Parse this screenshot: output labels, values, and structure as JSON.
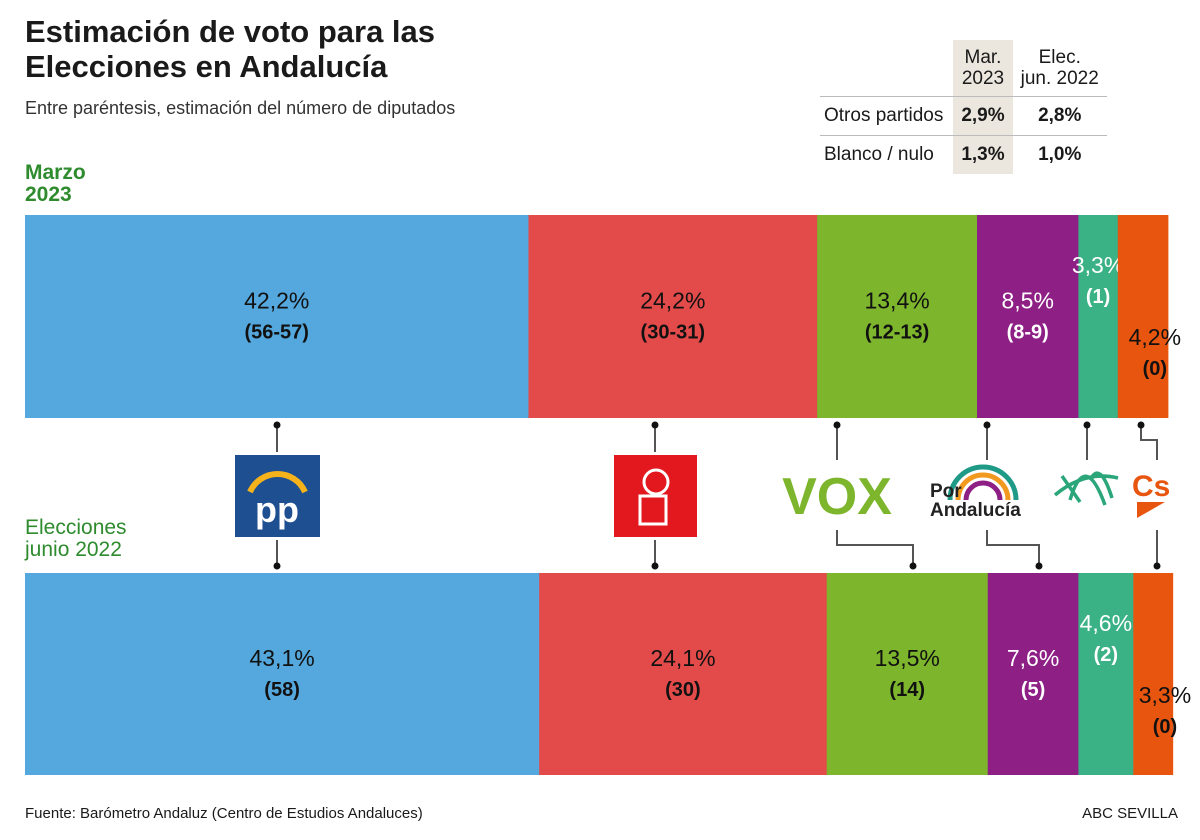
{
  "title": "Estimación de voto para las Elecciones en Andalucía",
  "subtitle": "Entre paréntesis, estimación del número de diputados",
  "side_table": {
    "headers": [
      "Mar. 2023",
      "Elec. jun. 2022"
    ],
    "header_lines": [
      [
        "Mar.",
        "2023"
      ],
      [
        "Elec.",
        "jun. 2022"
      ]
    ],
    "rows": [
      {
        "label": "Otros partidos",
        "values": [
          "2,9%",
          "2,8%"
        ]
      },
      {
        "label": "Blanco / nulo",
        "values": [
          "1,3%",
          "1,0%"
        ]
      }
    ]
  },
  "chart_data": {
    "type": "bar",
    "orientation": "horizontal-stacked",
    "categories": [
      "PP",
      "PSOE",
      "VOX",
      "Por Andalucía",
      "Adelante Andalucía",
      "Cs"
    ],
    "colors": [
      "#55a8dd",
      "#e34a4a",
      "#7db52d",
      "#8d1f85",
      "#3bb186",
      "#e8550f"
    ],
    "series": [
      {
        "name": "Marzo 2023",
        "name_lines": [
          "Marzo",
          "2023"
        ],
        "values": [
          42.2,
          24.2,
          13.4,
          8.5,
          3.3,
          4.2
        ],
        "labels": [
          "42,2%",
          "24,2%",
          "13,4%",
          "8,5%",
          "3,3%",
          "4,2%"
        ],
        "seats": [
          "(56-57)",
          "(30-31)",
          "(12-13)",
          "(8-9)",
          "(1)",
          "(0)"
        ]
      },
      {
        "name": "Elecciones junio 2022",
        "name_lines": [
          "Elecciones",
          "junio 2022"
        ],
        "values": [
          43.1,
          24.1,
          13.5,
          7.6,
          4.6,
          3.3
        ],
        "labels": [
          "43,1%",
          "24,1%",
          "13,5%",
          "7,6%",
          "4,6%",
          "3,3%"
        ],
        "seats": [
          "(58)",
          "(30)",
          "(14)",
          "(5)",
          "(2)",
          "(0)"
        ]
      }
    ],
    "logos": {
      "pp": "pp",
      "vox": "VOX",
      "por_andalucia": [
        "Por",
        "Andalucía"
      ],
      "cs": "Cs"
    }
  },
  "source": "Fuente: Barómetro Andaluz (Centro de Estudios Andaluces)",
  "credit": "ABC SEVILLA"
}
